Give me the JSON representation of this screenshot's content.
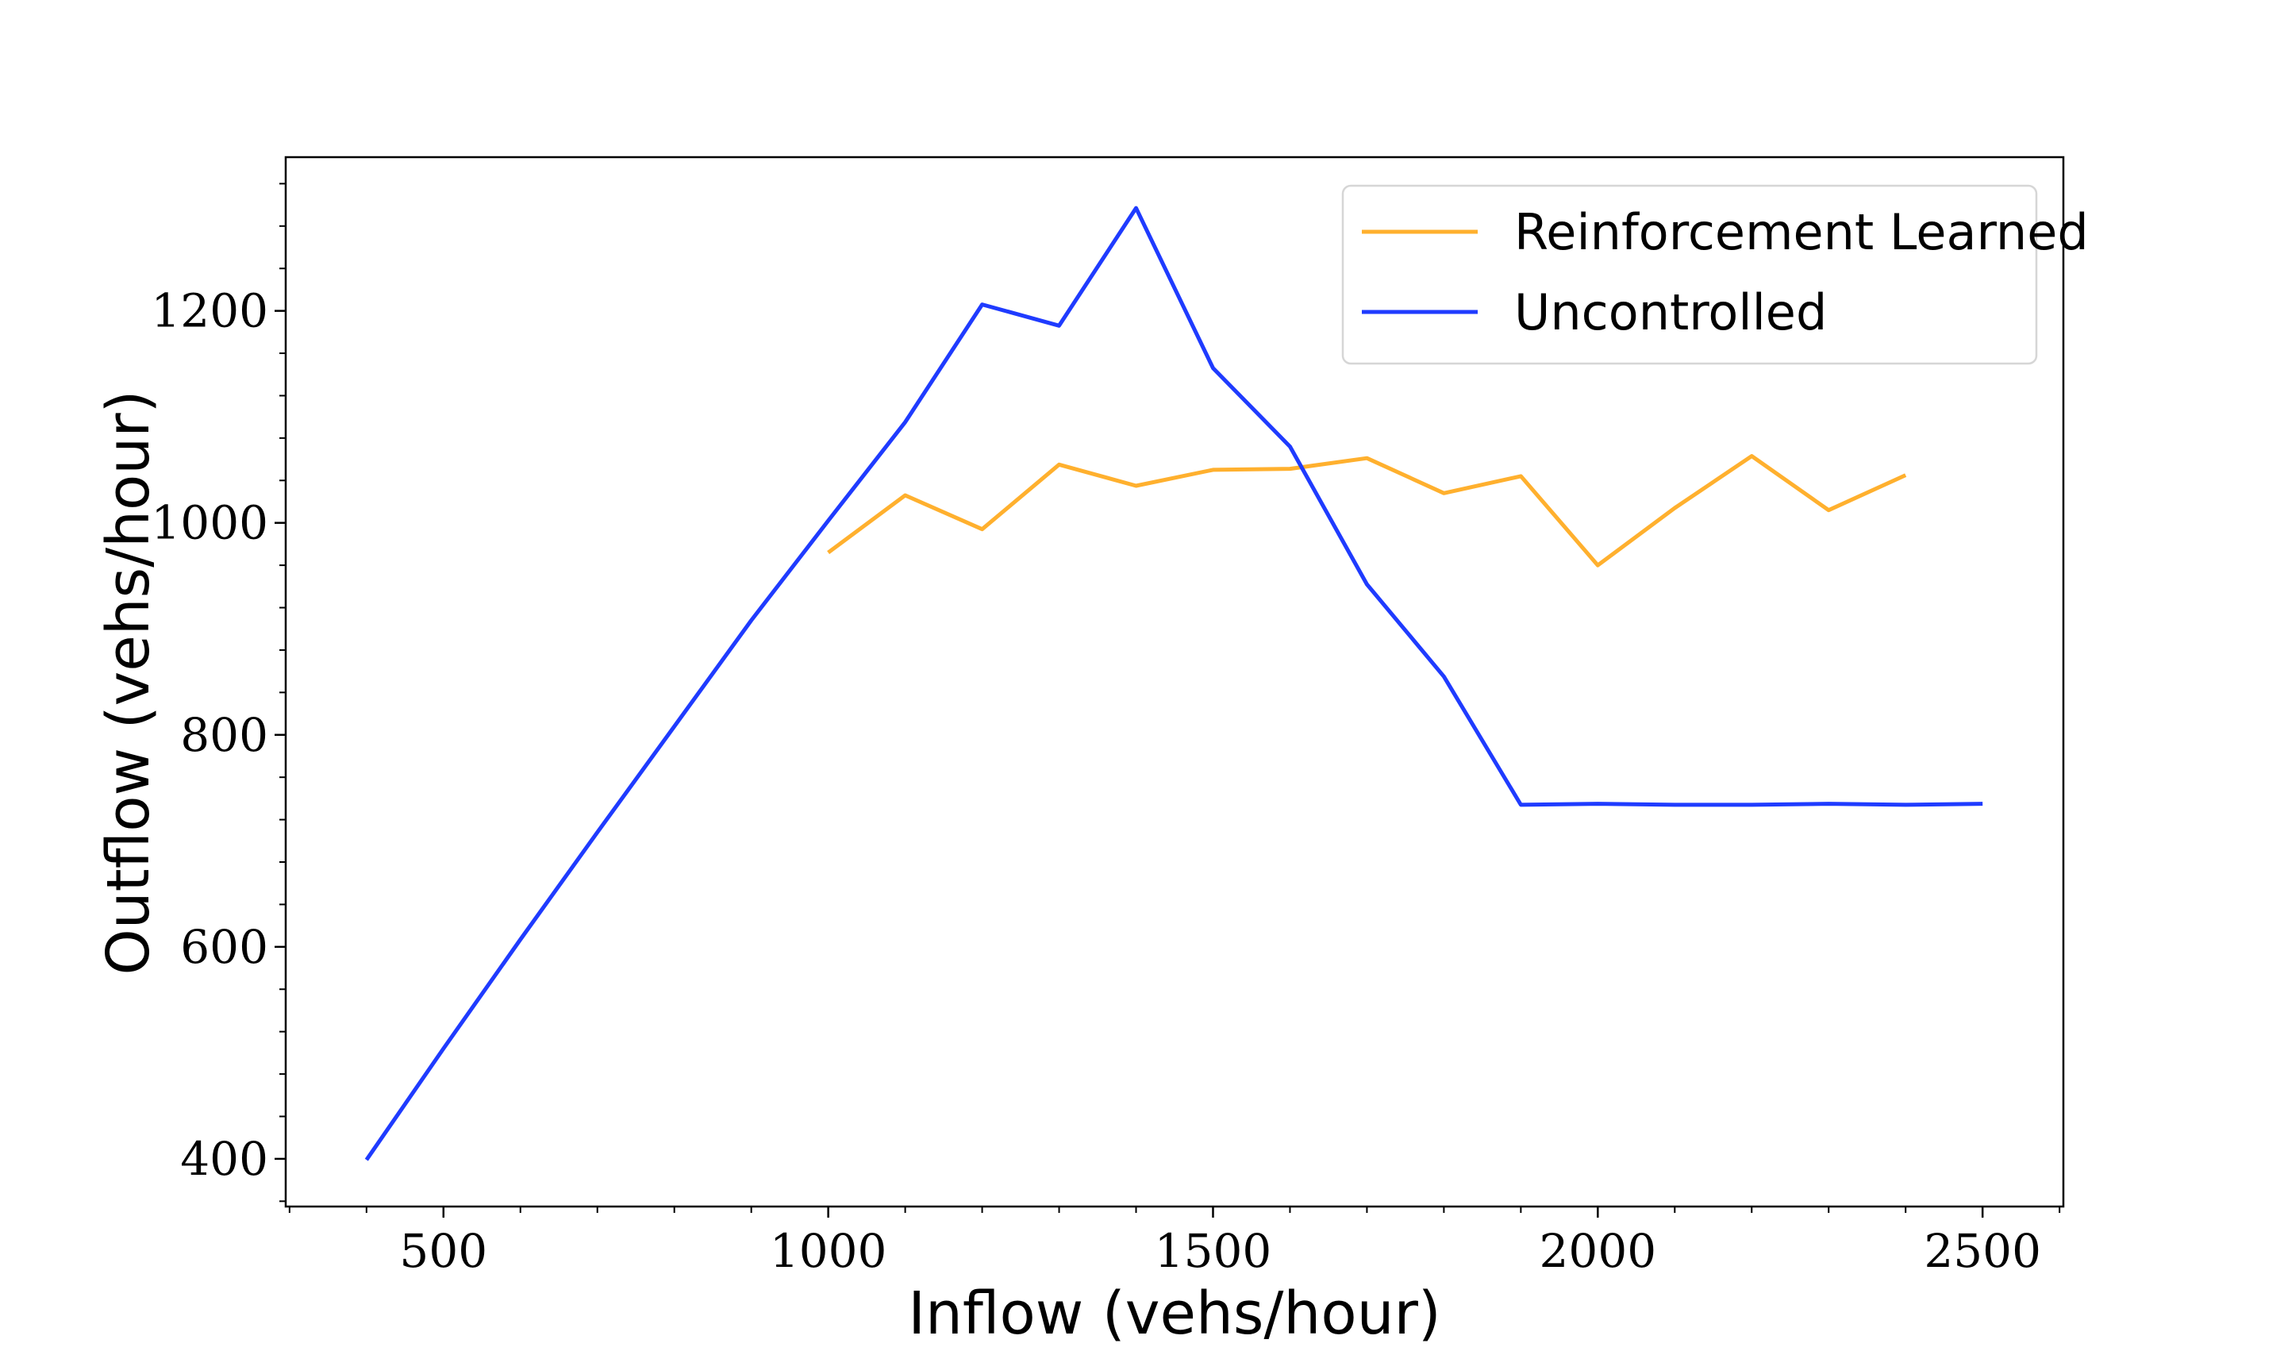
{
  "chart_data": {
    "type": "line",
    "xlabel": "Inflow (vehs/hour)",
    "ylabel": "Outflow (vehs/hour)",
    "xlim": [
      295,
      2605
    ],
    "ylim": [
      355,
      1345
    ],
    "xticks": [
      500,
      1000,
      1500,
      2000,
      2500
    ],
    "yticks": [
      400,
      600,
      800,
      1000,
      1200
    ],
    "grid": false,
    "legend_position": "top-right",
    "series": [
      {
        "name": "Reinforcement Learned",
        "color": "#ffb02e",
        "x": [
          1000,
          1100,
          1200,
          1300,
          1400,
          1500,
          1600,
          1700,
          1800,
          1900,
          2000,
          2100,
          2200,
          2300,
          2400
        ],
        "y": [
          972,
          1026,
          994,
          1055,
          1035,
          1050,
          1051,
          1061,
          1028,
          1044,
          960,
          1014,
          1063,
          1012,
          1045
        ]
      },
      {
        "name": "Uncontrolled",
        "color": "#1f3bff",
        "x": [
          400,
          500,
          600,
          700,
          800,
          900,
          1000,
          1100,
          1200,
          1300,
          1400,
          1500,
          1600,
          1700,
          1800,
          1900,
          2000,
          2100,
          2200,
          2300,
          2400,
          2500
        ],
        "y": [
          399,
          504,
          607,
          708,
          808,
          908,
          1002,
          1095,
          1206,
          1186,
          1297,
          1146,
          1072,
          942,
          855,
          734,
          735,
          734,
          734,
          735,
          734,
          735
        ]
      }
    ]
  }
}
